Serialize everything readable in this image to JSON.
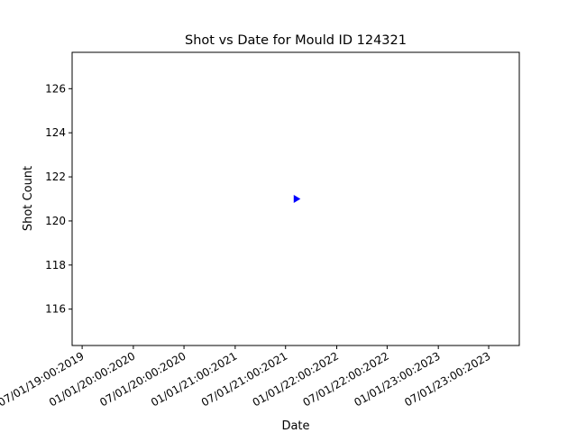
{
  "chart_data": {
    "type": "scatter",
    "title": "Shot vs Date for Mould ID 124321",
    "x_label": "Date",
    "y_label": "Shot Count",
    "series": [
      {
        "marker": "triangle-right",
        "color": "#0000ff",
        "x": [
          "2021-08-09"
        ],
        "values": [
          121
        ]
      }
    ],
    "xlim": [
      "2019-05-26",
      "2023-10-19"
    ],
    "xticks": [
      {
        "value": "2019-07-01",
        "label": "07/01/19:00:2019"
      },
      {
        "value": "2020-01-01",
        "label": "01/01/20:00:2020"
      },
      {
        "value": "2020-07-01",
        "label": "07/01/20:00:2020"
      },
      {
        "value": "2021-01-01",
        "label": "01/01/21:00:2021"
      },
      {
        "value": "2021-07-01",
        "label": "07/01/21:00:2021"
      },
      {
        "value": "2022-01-01",
        "label": "01/01/22:00:2022"
      },
      {
        "value": "2022-07-01",
        "label": "07/01/22:00:2022"
      },
      {
        "value": "2023-01-01",
        "label": "01/01/23:00:2023"
      },
      {
        "value": "2023-07-01",
        "label": "07/01/23:00:2023"
      }
    ],
    "ylim": [
      114.35,
      127.65
    ],
    "yticks": [
      116,
      118,
      120,
      122,
      124,
      126
    ]
  }
}
